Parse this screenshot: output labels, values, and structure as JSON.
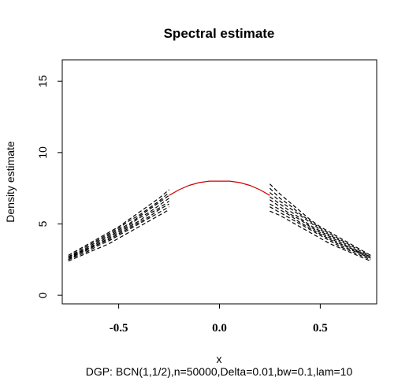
{
  "chart_data": {
    "type": "line",
    "title": "Spectral estimate",
    "xlabel": "x",
    "ylabel": "Density estimate",
    "caption": "DGP: BCN(1,1/2),n=50000,Delta=0.01,bw=0.1,lam=10",
    "xlim": [
      -0.78,
      0.78
    ],
    "ylim": [
      -0.6,
      16.5
    ],
    "xticks": [
      -0.5,
      0.0,
      0.5
    ],
    "xtick_labels": [
      "-0.5",
      "0.0",
      "0.5"
    ],
    "yticks": [
      0,
      5,
      10,
      15
    ],
    "ytick_labels": [
      "0",
      "5",
      "10",
      "15"
    ],
    "grid": false,
    "colors": {
      "true_density": "#cc0000",
      "estimates": "#000000"
    },
    "true_density": {
      "name": "",
      "x": [
        -0.25,
        -0.2,
        -0.15,
        -0.1,
        -0.05,
        0.0,
        0.05,
        0.1,
        0.15,
        0.2,
        0.25
      ],
      "y": [
        7.0,
        7.4,
        7.7,
        7.9,
        8.0,
        8.0,
        8.0,
        7.9,
        7.7,
        7.4,
        7.0
      ]
    },
    "estimates_left": {
      "x": [
        -0.75,
        -0.7,
        -0.65,
        -0.6,
        -0.55,
        -0.5,
        -0.45,
        -0.4,
        -0.35,
        -0.3,
        -0.25
      ],
      "curves": [
        [
          2.4,
          2.7,
          3.0,
          3.3,
          3.6,
          4.0,
          4.4,
          4.8,
          5.2,
          5.6,
          6.0
        ],
        [
          2.5,
          2.8,
          3.1,
          3.5,
          3.8,
          4.2,
          4.6,
          5.0,
          5.4,
          5.8,
          6.2
        ],
        [
          2.5,
          2.9,
          3.2,
          3.6,
          3.9,
          4.3,
          4.7,
          5.1,
          5.5,
          6.0,
          6.4
        ],
        [
          2.6,
          2.9,
          3.3,
          3.6,
          4.0,
          4.4,
          4.8,
          5.2,
          5.7,
          6.1,
          6.6
        ],
        [
          2.6,
          3.0,
          3.3,
          3.7,
          4.1,
          4.5,
          4.9,
          5.4,
          5.8,
          6.3,
          6.8
        ],
        [
          2.7,
          3.0,
          3.4,
          3.8,
          4.2,
          4.6,
          5.0,
          5.5,
          6.0,
          6.5,
          7.0
        ],
        [
          2.7,
          3.1,
          3.5,
          3.9,
          4.3,
          4.7,
          5.2,
          5.6,
          6.1,
          6.6,
          7.2
        ],
        [
          2.8,
          3.2,
          3.6,
          4.0,
          4.4,
          4.8,
          5.3,
          5.8,
          6.3,
          6.8,
          7.4
        ]
      ]
    },
    "estimates_right": {
      "x": [
        0.25,
        0.3,
        0.35,
        0.4,
        0.45,
        0.5,
        0.55,
        0.6,
        0.65,
        0.7,
        0.75
      ],
      "curves": [
        [
          5.9,
          5.6,
          5.2,
          4.8,
          4.4,
          4.0,
          3.6,
          3.3,
          3.0,
          2.7,
          2.4
        ],
        [
          6.2,
          5.8,
          5.4,
          5.0,
          4.6,
          4.2,
          3.8,
          3.4,
          3.1,
          2.8,
          2.5
        ],
        [
          6.4,
          6.0,
          5.6,
          5.1,
          4.7,
          4.3,
          3.9,
          3.5,
          3.2,
          2.9,
          2.6
        ],
        [
          6.7,
          6.2,
          5.7,
          5.3,
          4.8,
          4.4,
          4.0,
          3.6,
          3.3,
          2.9,
          2.6
        ],
        [
          6.9,
          6.4,
          5.9,
          5.4,
          4.9,
          4.5,
          4.1,
          3.7,
          3.3,
          3.0,
          2.7
        ],
        [
          7.2,
          6.6,
          6.1,
          5.6,
          5.1,
          4.6,
          4.2,
          3.8,
          3.4,
          3.0,
          2.7
        ],
        [
          7.5,
          6.8,
          6.3,
          5.7,
          5.2,
          4.7,
          4.3,
          3.9,
          3.5,
          3.1,
          2.8
        ],
        [
          7.8,
          7.1,
          6.5,
          5.9,
          5.3,
          4.8,
          4.4,
          4.0,
          3.6,
          3.2,
          2.8
        ]
      ]
    }
  }
}
